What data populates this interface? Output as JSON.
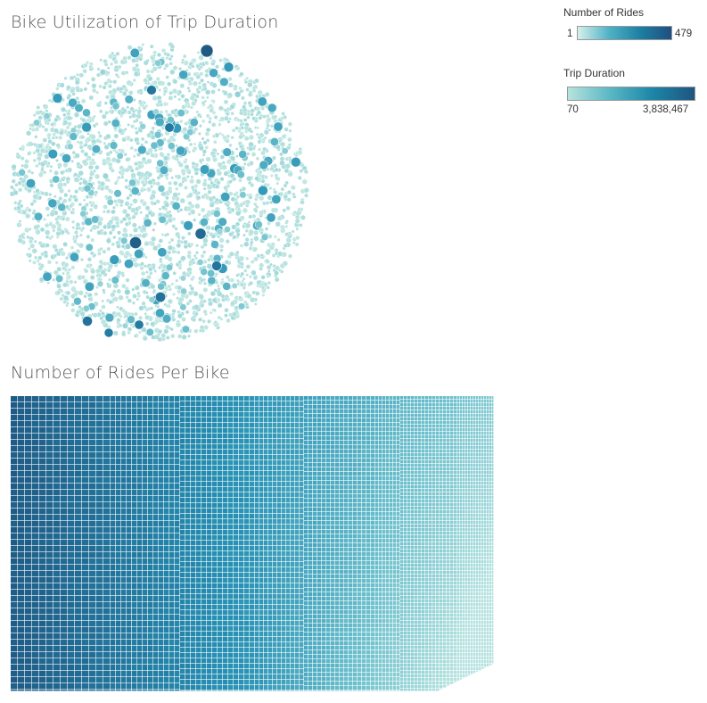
{
  "chart_data": [
    {
      "type": "packed-bubble",
      "title": "Bike Utilization of Trip Duration",
      "size_measure": "Trip Duration",
      "color_measure": "Trip Duration",
      "color_range": [
        70,
        3838467
      ],
      "colors": [
        "#b6e3dc",
        "#1f5a85"
      ],
      "notable_bubbles": [
        {
          "value": 3838467
        },
        {
          "value": 3500000
        },
        {
          "value": 3000000
        },
        {
          "value": 2600000
        },
        {
          "value": 2500000
        },
        {
          "value": 2400000
        },
        {
          "value": 2300000
        },
        {
          "value": 2200000
        },
        {
          "value": 2100000
        },
        {
          "value": 2000000
        }
      ]
    },
    {
      "type": "treemap",
      "title": "Number of Rides Per Bike",
      "size_measure": "Number of Rides",
      "color_measure": "Number of Rides",
      "color_range": [
        1,
        479
      ],
      "colors": [
        "#d3eeea",
        "#1f5a85"
      ]
    }
  ],
  "legends": {
    "rides": {
      "title": "Number of Rides",
      "min": "1",
      "max": "479"
    },
    "duration": {
      "title": "Trip Duration",
      "min": "70",
      "max": "3,838,467"
    }
  }
}
